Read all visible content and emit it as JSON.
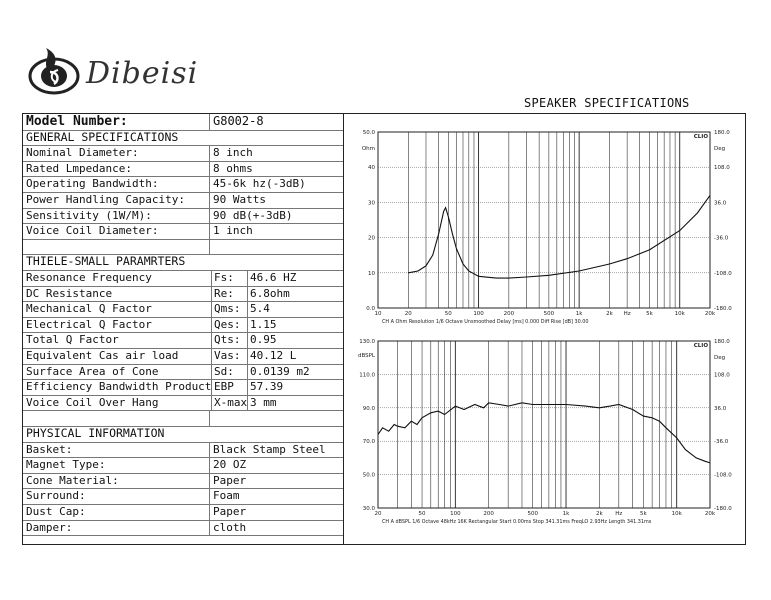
{
  "brand": {
    "name": "Dibeisi"
  },
  "title": "SPEAKER SPECIFICATIONS",
  "model": {
    "label": "Model Number:",
    "value": "G8002-8"
  },
  "general": {
    "heading": "GENERAL SPECIFICATIONS",
    "rows": [
      {
        "k": "Nominal Diameter:",
        "v": "8 inch"
      },
      {
        "k": "Rated Lmpedance:",
        "v": "8 ohms"
      },
      {
        "k": "Operating Bandwidth:",
        "v": "45-6k hz(-3dB)"
      },
      {
        "k": "Power Handling Capacity:",
        "v": "90 Watts"
      },
      {
        "k": "Sensitivity (1W/M):",
        "v": "90 dB(+-3dB)"
      },
      {
        "k": "Voice Coil Diameter:",
        "v": "1 inch"
      }
    ]
  },
  "ts": {
    "heading": "THIELE-SMALL PARAMRTERS",
    "rows": [
      {
        "k": "Resonance Frequency",
        "s": "Fs:",
        "v": "46.6 HZ"
      },
      {
        "k": "DC Resistance",
        "s": "Re:",
        "v": "6.8ohm"
      },
      {
        "k": "Mechanical Q Factor",
        "s": "Qms:",
        "v": "5.4"
      },
      {
        "k": "Electrical Q Factor",
        "s": "Qes:",
        "v": "1.15"
      },
      {
        "k": "Total Q Factor",
        "s": "Qts:",
        "v": "0.95"
      },
      {
        "k": "Equivalent Cas air load",
        "s": "Vas:",
        "v": "40.12 L"
      },
      {
        "k": "Surface Area of Cone",
        "s": "Sd:",
        "v": "0.0139 m2"
      },
      {
        "k": "Efficiency Bandwidth Product",
        "s": "EBP",
        "v": "57.39"
      },
      {
        "k": "Voice Coil Over Hang",
        "s": "X-max",
        "v": "3 mm"
      }
    ]
  },
  "physical": {
    "heading": "PHYSICAL INFORMATION",
    "rows": [
      {
        "k": "Basket:",
        "v": "Black Stamp Steel"
      },
      {
        "k": "Magnet Type:",
        "v": "20 OZ"
      },
      {
        "k": "Cone Material:",
        "v": "Paper"
      },
      {
        "k": "Surround:",
        "v": "Foam"
      },
      {
        "k": "Dust Cap:",
        "v": "Paper"
      },
      {
        "k": "Damper:",
        "v": "cloth"
      }
    ]
  },
  "chart_data": [
    {
      "type": "line",
      "badge": "CLIO",
      "left_unit": "Ohm",
      "right_unit": "Deg",
      "left_ticks": [
        "50.0",
        "40",
        "30",
        "20",
        "10",
        "0.0"
      ],
      "right_ticks": [
        "180.0",
        "108.0",
        "36.0",
        "-36.0",
        "-108.0",
        "-180.0"
      ],
      "x_ticks": [
        "10",
        "20",
        "50",
        "100",
        "200",
        "500",
        "1k",
        "2k",
        "Hz",
        "5k",
        "10k",
        "20k"
      ],
      "x_tick_freqs": [
        10,
        20,
        50,
        100,
        200,
        500,
        1000,
        2000,
        3000,
        5000,
        10000,
        20000
      ],
      "xlim": [
        10,
        20000
      ],
      "ylim": [
        0,
        50
      ],
      "footer": "CH A   Ohm   Resolution 1/6 Octave   Unsmoothed   Delay [ms] 0.000   Diff Rise [dB] 30.00",
      "series": [
        {
          "x": [
            20,
            25,
            30,
            35,
            40,
            45,
            47,
            50,
            55,
            60,
            70,
            80,
            100,
            150,
            200,
            300,
            500,
            1000,
            2000,
            3000,
            5000,
            10000,
            15000,
            20000
          ],
          "y": [
            10,
            10.5,
            12,
            15,
            21,
            27.5,
            28.5,
            26,
            21,
            17,
            12.5,
            10.5,
            9,
            8.5,
            8.5,
            8.8,
            9.3,
            10.5,
            12.5,
            14,
            16.5,
            22,
            27,
            32
          ]
        }
      ]
    },
    {
      "type": "line",
      "badge": "CLIO",
      "left_unit": "dBSPL",
      "right_unit": "Deg",
      "left_ticks": [
        "130.0",
        "110.0",
        "90.0",
        "70.0",
        "50.0",
        "30.0"
      ],
      "right_ticks": [
        "180.0",
        "108.0",
        "36.0",
        "-36.0",
        "-108.0",
        "-180.0"
      ],
      "x_ticks": [
        "20",
        "50",
        "100",
        "200",
        "500",
        "1k",
        "2k",
        "Hz",
        "5k",
        "10k",
        "20k"
      ],
      "x_tick_freqs": [
        20,
        50,
        100,
        200,
        500,
        1000,
        2000,
        3000,
        5000,
        10000,
        20000
      ],
      "xlim": [
        20,
        20000
      ],
      "ylim": [
        30,
        130
      ],
      "footer": "CH A   dBSPL   1/6 Octave   48kHz   16K   Rectangular   Start 0.00ms   Stop 341.31ms   FreqLO 2.93Hz   Length 341.31ms",
      "series": [
        {
          "x": [
            20,
            22,
            25,
            28,
            30,
            35,
            40,
            45,
            50,
            60,
            70,
            80,
            100,
            120,
            150,
            180,
            200,
            250,
            300,
            400,
            500,
            700,
            1000,
            1500,
            2000,
            2500,
            3000,
            4000,
            5000,
            6000,
            7000,
            8000,
            10000,
            12000,
            15000,
            18000,
            20000
          ],
          "y": [
            74,
            78,
            76,
            80,
            79,
            78,
            82,
            80,
            84,
            87,
            88,
            86,
            91,
            89,
            92,
            90,
            93,
            92,
            91,
            93,
            92,
            92,
            92,
            91,
            90,
            91,
            92,
            89,
            85,
            84,
            82,
            78,
            72,
            65,
            60,
            58,
            57
          ]
        }
      ]
    }
  ]
}
